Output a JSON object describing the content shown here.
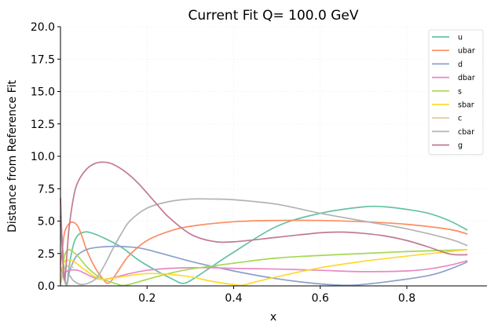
{
  "chart_data": {
    "type": "line",
    "title": "Current Fit Q= 100.0 GeV",
    "xlabel": "x",
    "ylabel": "Distance from Reference Fit",
    "xlim": [
      0.0,
      0.985
    ],
    "ylim": [
      0,
      20
    ],
    "xticks": [
      0.2,
      0.4,
      0.6,
      0.8
    ],
    "xtick_labels": [
      "0.2",
      "0.4",
      "0.6",
      "0.8"
    ],
    "yticks": [
      0,
      2.5,
      5,
      7.5,
      10,
      12.5,
      15,
      17.5,
      20
    ],
    "ytick_labels": [
      "0.0",
      "2.5",
      "5.0",
      "7.5",
      "10.0",
      "12.5",
      "15.0",
      "17.5",
      "20.0"
    ],
    "grid": true,
    "legend_position": "top-right",
    "series": [
      {
        "name": "u",
        "color": "#66c2a5",
        "x": [
          0.0,
          0.005,
          0.01,
          0.015,
          0.02,
          0.03,
          0.04,
          0.055,
          0.07,
          0.1,
          0.14,
          0.18,
          0.22,
          0.26,
          0.28,
          0.3,
          0.35,
          0.4,
          0.5,
          0.6,
          0.7,
          0.75,
          0.8,
          0.85,
          0.9,
          0.94
        ],
        "y": [
          5.4,
          3.0,
          0.6,
          0.2,
          1.5,
          3.2,
          3.9,
          4.15,
          4.1,
          3.7,
          3.0,
          2.0,
          1.2,
          0.5,
          0.2,
          0.4,
          1.5,
          2.6,
          4.6,
          5.6,
          6.1,
          6.1,
          5.9,
          5.6,
          5.0,
          4.3
        ]
      },
      {
        "name": "ubar",
        "color": "#fc8d62",
        "x": [
          0.0,
          0.005,
          0.01,
          0.02,
          0.03,
          0.04,
          0.05,
          0.06,
          0.08,
          0.1,
          0.11,
          0.12,
          0.14,
          0.16,
          0.2,
          0.25,
          0.3,
          0.4,
          0.5,
          0.6,
          0.7,
          0.8,
          0.9,
          0.94
        ],
        "y": [
          1.6,
          3.0,
          4.2,
          4.8,
          4.9,
          4.6,
          3.8,
          2.8,
          1.4,
          0.45,
          0.2,
          0.5,
          1.5,
          2.4,
          3.5,
          4.2,
          4.6,
          4.95,
          5.05,
          5.05,
          4.95,
          4.75,
          4.35,
          4.0
        ]
      },
      {
        "name": "d",
        "color": "#8da0cb",
        "x": [
          0.0,
          0.005,
          0.01,
          0.015,
          0.02,
          0.03,
          0.04,
          0.06,
          0.08,
          0.12,
          0.16,
          0.2,
          0.3,
          0.4,
          0.5,
          0.6,
          0.67,
          0.75,
          0.85,
          0.9,
          0.94
        ],
        "y": [
          4.8,
          2.6,
          0.6,
          0.05,
          1.0,
          1.9,
          2.4,
          2.8,
          2.95,
          3.05,
          3.0,
          2.8,
          1.9,
          1.15,
          0.55,
          0.15,
          0.05,
          0.3,
          0.8,
          1.3,
          1.85
        ]
      },
      {
        "name": "dbar",
        "color": "#e78ac3",
        "x": [
          0.0,
          0.005,
          0.01,
          0.02,
          0.04,
          0.06,
          0.08,
          0.1,
          0.13,
          0.16,
          0.2,
          0.25,
          0.3,
          0.35,
          0.4,
          0.5,
          0.6,
          0.7,
          0.8,
          0.85,
          0.9,
          0.94
        ],
        "y": [
          0.4,
          0.8,
          1.0,
          1.2,
          1.2,
          0.9,
          0.6,
          0.5,
          0.7,
          0.95,
          1.2,
          1.35,
          1.4,
          1.4,
          1.35,
          1.3,
          1.2,
          1.1,
          1.15,
          1.3,
          1.6,
          1.95
        ]
      },
      {
        "name": "s",
        "color": "#a6d854",
        "x": [
          0.0,
          0.005,
          0.01,
          0.02,
          0.04,
          0.06,
          0.08,
          0.1,
          0.13,
          0.15,
          0.2,
          0.25,
          0.3,
          0.4,
          0.5,
          0.6,
          0.7,
          0.8,
          0.9,
          0.94
        ],
        "y": [
          0.3,
          1.3,
          2.4,
          2.8,
          2.3,
          1.5,
          0.9,
          0.5,
          0.15,
          0.05,
          0.5,
          0.95,
          1.3,
          1.75,
          2.15,
          2.35,
          2.5,
          2.65,
          2.75,
          2.8
        ]
      },
      {
        "name": "sbar",
        "color": "#ffd92f",
        "x": [
          0.0,
          0.005,
          0.01,
          0.02,
          0.03,
          0.05,
          0.08,
          0.1,
          0.15,
          0.2,
          0.25,
          0.3,
          0.35,
          0.4,
          0.42,
          0.45,
          0.5,
          0.6,
          0.7,
          0.8,
          0.9,
          0.94
        ],
        "y": [
          0.3,
          1.4,
          1.9,
          2.0,
          1.9,
          1.4,
          0.7,
          0.5,
          0.75,
          0.95,
          0.9,
          0.7,
          0.35,
          0.1,
          0.05,
          0.3,
          0.7,
          1.4,
          1.9,
          2.3,
          2.65,
          2.8
        ]
      },
      {
        "name": "c",
        "color": "#e5c494",
        "x": [
          0.0,
          0.005,
          0.01,
          0.02,
          0.03
        ],
        "y": [
          0.2,
          0.8,
          1.3,
          1.6,
          1.4
        ]
      },
      {
        "name": "cbar",
        "color": "#b3b3b3",
        "x": [
          0.0,
          0.005,
          0.01,
          0.015,
          0.02,
          0.03,
          0.05,
          0.08,
          0.1,
          0.12,
          0.14,
          0.16,
          0.2,
          0.25,
          0.3,
          0.35,
          0.4,
          0.5,
          0.6,
          0.7,
          0.8,
          0.9,
          0.94
        ],
        "y": [
          1.5,
          0.9,
          0.3,
          0.05,
          0.8,
          0.4,
          0.1,
          0.5,
          1.5,
          2.8,
          4.0,
          5.0,
          6.0,
          6.5,
          6.7,
          6.7,
          6.65,
          6.3,
          5.6,
          5.0,
          4.4,
          3.6,
          3.1
        ]
      },
      {
        "name": "g",
        "color": "#c17a93",
        "x": [
          0.0,
          0.003,
          0.006,
          0.01,
          0.015,
          0.02,
          0.03,
          0.04,
          0.06,
          0.08,
          0.1,
          0.12,
          0.15,
          0.18,
          0.22,
          0.25,
          0.3,
          0.35,
          0.4,
          0.5,
          0.6,
          0.65,
          0.7,
          0.75,
          0.8,
          0.85,
          0.9,
          0.94
        ],
        "y": [
          6.8,
          4.0,
          1.5,
          0.5,
          2.5,
          4.5,
          6.8,
          8.0,
          9.0,
          9.45,
          9.55,
          9.4,
          8.8,
          7.9,
          6.4,
          5.3,
          4.0,
          3.45,
          3.4,
          3.75,
          4.1,
          4.15,
          4.05,
          3.85,
          3.5,
          3.0,
          2.45,
          2.4
        ]
      }
    ]
  }
}
